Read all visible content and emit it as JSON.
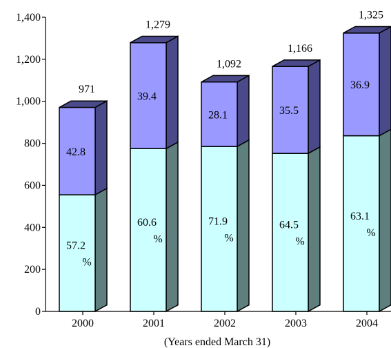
{
  "chart_data": {
    "type": "bar",
    "stacked": true,
    "style": "3d",
    "categories": [
      "2000",
      "2001",
      "2002",
      "2003",
      "2004"
    ],
    "totals": [
      971,
      1279,
      1092,
      1166,
      1325
    ],
    "total_labels": [
      "971",
      "1,279",
      "1,092",
      "1,166",
      "1,325"
    ],
    "series": [
      {
        "values": [
          555,
          775,
          785,
          752,
          836
        ],
        "labels": [
          [
            "57.2",
            "%"
          ],
          [
            "60.6",
            "%"
          ],
          [
            "71.9",
            "%"
          ],
          [
            "64.5",
            "%"
          ],
          [
            "63.1",
            "%"
          ]
        ],
        "color": "#ccffff",
        "side_color": "#5f7f7f"
      },
      {
        "values": [
          416,
          504,
          307,
          414,
          489
        ],
        "labels": [
          [
            "42.8"
          ],
          [
            "39.4"
          ],
          [
            "28.1"
          ],
          [
            "35.5"
          ],
          [
            "36.9"
          ]
        ],
        "color": "#9999ff",
        "side_color": "#4a4a8a"
      }
    ],
    "ylim": [
      0,
      1400
    ],
    "yticks": [
      0,
      200,
      400,
      600,
      800,
      1000,
      1200,
      1400
    ],
    "ytick_labels": [
      "0",
      "200",
      "400",
      "600",
      "800",
      "1,000",
      "1,200",
      "1,400"
    ],
    "xlabel": "(Years ended March 31)",
    "ylabel": "",
    "grid": false,
    "legend": "none"
  }
}
